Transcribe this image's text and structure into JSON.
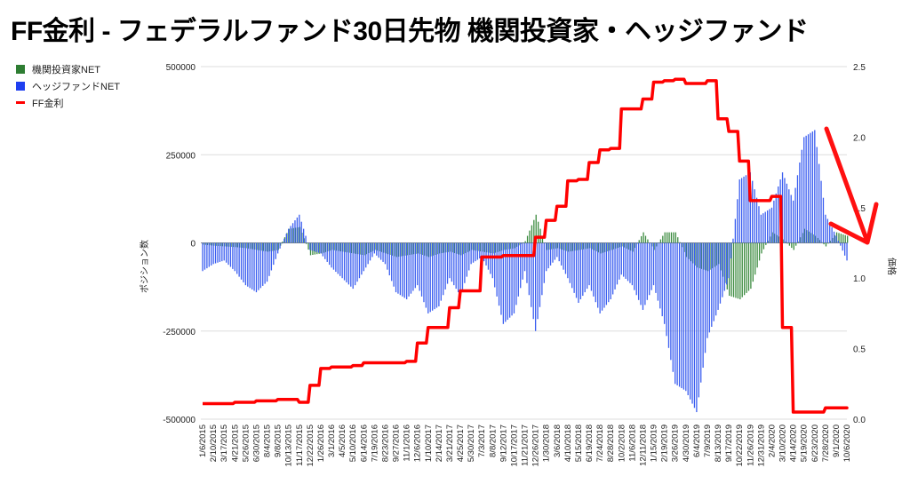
{
  "title": "FF金利 - フェデラルファンド30日先物 機関投資家・ヘッジファンド",
  "colors": {
    "institutional": "#2e7d32",
    "hedge": "#1f4fe8",
    "rate": "#ff0000",
    "grid": "#dddddd"
  },
  "chart_data": {
    "type": "bar+line",
    "title": "FF金利 - フェデラルファンド30日先物 機関投資家・ヘッジファンド",
    "ylabel_left": "ポジション数",
    "ylabel_right": "価格",
    "ylim_left": [
      -500000,
      500000
    ],
    "ylim_right": [
      0,
      2.5
    ],
    "yticks_left": [
      "500000",
      "250000",
      "0",
      "-250000",
      "-500000"
    ],
    "yticks_right": [
      "2.5",
      "2.0",
      "1.5",
      "1.0",
      "0.5",
      "0.0"
    ],
    "grid": true,
    "legend_position": "top-left",
    "legend": [
      "機関投資家NET",
      "ヘッジファンドNET",
      "FF金利"
    ],
    "categories": [
      "1/6/2015",
      "2/10/2015",
      "3/17/2015",
      "4/21/2015",
      "5/26/2015",
      "6/30/2015",
      "8/4/2015",
      "9/8/2015",
      "10/13/2015",
      "11/17/2015",
      "12/22/2015",
      "1/26/2016",
      "3/1/2016",
      "4/5/2016",
      "5/10/2016",
      "6/14/2016",
      "7/19/2016",
      "8/23/2016",
      "9/27/2016",
      "11/1/2016",
      "12/6/2016",
      "1/10/2017",
      "2/14/2017",
      "3/21/2017",
      "4/25/2017",
      "5/30/2017",
      "7/3/2017",
      "8/8/2017",
      "9/12/2017",
      "10/17/2017",
      "11/21/2017",
      "12/26/2017",
      "1/30/2018",
      "3/6/2018",
      "4/10/2018",
      "5/15/2018",
      "6/19/2018",
      "7/24/2018",
      "8/28/2018",
      "10/2/2018",
      "11/6/2018",
      "12/11/2018",
      "1/15/2019",
      "2/19/2019",
      "3/26/2019",
      "4/30/2019",
      "6/4/2019",
      "7/9/2019",
      "8/13/2019",
      "9/17/2019",
      "10/22/2019",
      "11/26/2019",
      "12/31/2019",
      "2/4/2020",
      "3/10/2020",
      "4/14/2020",
      "5/19/2020",
      "6/23/2020",
      "7/28/2020",
      "9/1/2020",
      "10/6/2020"
    ],
    "series": [
      {
        "name": "機関投資家NET",
        "axis": "left",
        "type": "bar",
        "values": [
          -5000,
          -8000,
          -10000,
          -12000,
          -15000,
          -20000,
          -25000,
          -20000,
          40000,
          45000,
          -35000,
          -30000,
          -20000,
          -25000,
          -30000,
          -35000,
          -20000,
          -30000,
          -40000,
          -35000,
          -30000,
          -40000,
          -30000,
          -25000,
          -35000,
          -20000,
          -25000,
          -30000,
          -20000,
          -15000,
          5000,
          80000,
          -20000,
          -15000,
          -25000,
          -20000,
          -15000,
          -30000,
          -20000,
          -10000,
          -25000,
          30000,
          -20000,
          30000,
          30000,
          -40000,
          -70000,
          -80000,
          -60000,
          -150000,
          -160000,
          -130000,
          -30000,
          30000,
          10000,
          -20000,
          40000,
          20000,
          -10000,
          30000,
          20000
        ]
      },
      {
        "name": "ヘッジファンドNET",
        "axis": "left",
        "type": "bar",
        "values": [
          -80000,
          -60000,
          -50000,
          -80000,
          -120000,
          -140000,
          -110000,
          -30000,
          40000,
          80000,
          -20000,
          -30000,
          -70000,
          -100000,
          -130000,
          -80000,
          -30000,
          -60000,
          -140000,
          -160000,
          -120000,
          -200000,
          -180000,
          -100000,
          -150000,
          -60000,
          -40000,
          -100000,
          -230000,
          -200000,
          -80000,
          -250000,
          -80000,
          -40000,
          -100000,
          -170000,
          -120000,
          -200000,
          -160000,
          -90000,
          -120000,
          -190000,
          -120000,
          -230000,
          -400000,
          -420000,
          -480000,
          -270000,
          -190000,
          -100000,
          180000,
          200000,
          80000,
          100000,
          200000,
          120000,
          300000,
          320000,
          80000,
          20000,
          -50000
        ]
      },
      {
        "name": "FF金利",
        "axis": "right",
        "type": "step-line",
        "values": [
          0.11,
          0.11,
          0.11,
          0.12,
          0.12,
          0.13,
          0.13,
          0.14,
          0.14,
          0.12,
          0.24,
          0.36,
          0.37,
          0.37,
          0.38,
          0.4,
          0.4,
          0.4,
          0.4,
          0.41,
          0.54,
          0.65,
          0.65,
          0.79,
          0.91,
          0.91,
          1.15,
          1.15,
          1.16,
          1.16,
          1.16,
          1.29,
          1.41,
          1.51,
          1.69,
          1.7,
          1.82,
          1.91,
          1.92,
          2.2,
          2.2,
          2.27,
          2.39,
          2.4,
          2.41,
          2.38,
          2.38,
          2.4,
          2.13,
          2.04,
          1.83,
          1.55,
          1.55,
          1.58,
          0.65,
          0.05,
          0.05,
          0.05,
          0.08,
          0.08,
          0.08
        ]
      }
    ],
    "annotations": [
      "red arrow pointing down-right toward the latest rate level"
    ]
  }
}
